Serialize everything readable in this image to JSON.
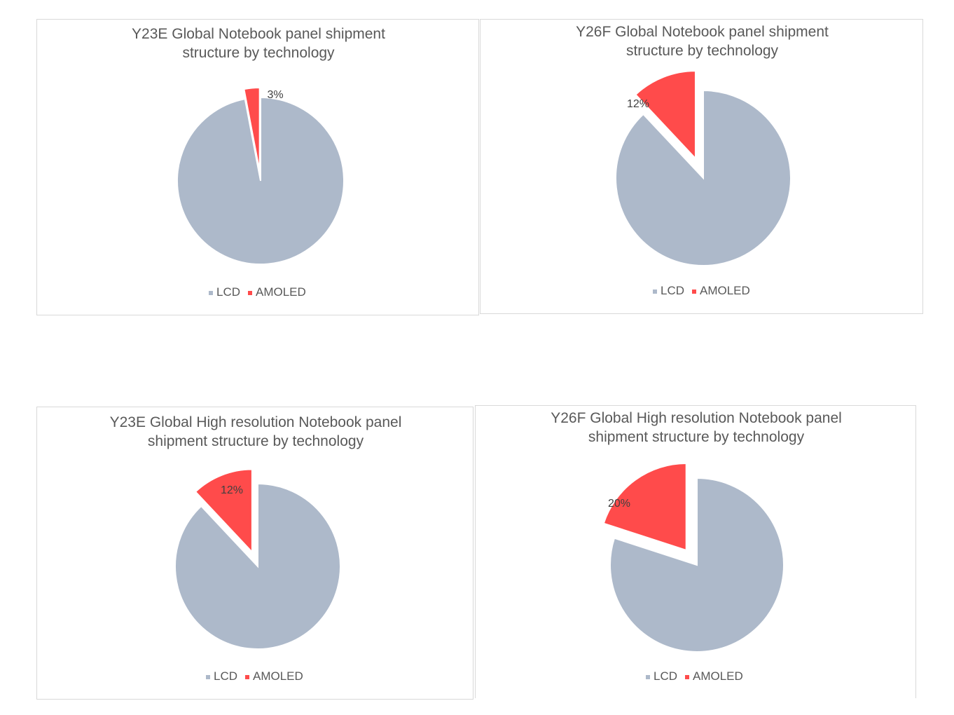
{
  "colors": {
    "LCD": "#adb9ca",
    "AMOLED": "#ff4b4b"
  },
  "chart_data": [
    {
      "type": "pie",
      "title": [
        "Y23E Global Notebook panel shipment",
        "structure by technology"
      ],
      "slices": [
        {
          "name": "LCD",
          "value": 97,
          "label": ""
        },
        {
          "name": "AMOLED",
          "value": 3,
          "label": "3%"
        }
      ],
      "exploded": "AMOLED",
      "legend": [
        "LCD",
        "AMOLED"
      ],
      "legend_position": "bottom"
    },
    {
      "type": "pie",
      "title": [
        "Y26F Global Notebook panel shipment",
        "structure by technology"
      ],
      "slices": [
        {
          "name": "LCD",
          "value": 88,
          "label": ""
        },
        {
          "name": "AMOLED",
          "value": 12,
          "label": "12%"
        }
      ],
      "exploded": "AMOLED",
      "legend": [
        "LCD",
        "AMOLED"
      ],
      "legend_position": "bottom"
    },
    {
      "type": "pie",
      "title": [
        "Y23E Global High resolution Notebook panel",
        "shipment structure by technology"
      ],
      "slices": [
        {
          "name": "LCD",
          "value": 88,
          "label": ""
        },
        {
          "name": "AMOLED",
          "value": 12,
          "label": "12%"
        }
      ],
      "exploded": "AMOLED",
      "legend": [
        "LCD",
        "AMOLED"
      ],
      "legend_position": "bottom"
    },
    {
      "type": "pie",
      "title": [
        "Y26F Global High resolution Notebook panel",
        "shipment structure by technology"
      ],
      "slices": [
        {
          "name": "LCD",
          "value": 80,
          "label": ""
        },
        {
          "name": "AMOLED",
          "value": 20,
          "label": "20%"
        }
      ],
      "exploded": "AMOLED",
      "legend": [
        "LCD",
        "AMOLED"
      ],
      "legend_position": "bottom"
    }
  ]
}
